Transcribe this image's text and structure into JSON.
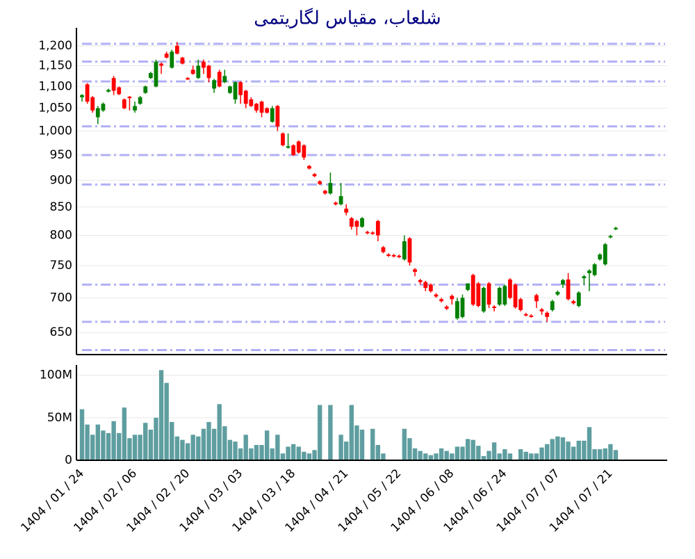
{
  "chart_data": [
    {
      "type": "candlestick",
      "title": "شلعاب، مقیاس لگاریتمی",
      "log_scale": true,
      "grid": true,
      "up_color": "#008000",
      "down_color": "#ff0000",
      "level_color": "#b0b0f5",
      "ylim": [
        620,
        1247
      ],
      "yticks": [
        650,
        700,
        750,
        800,
        850,
        900,
        950,
        {
          "value": 1000,
          "label": "1,000"
        },
        {
          "value": 1050,
          "label": "1,050"
        },
        {
          "value": 1100,
          "label": "1,100"
        },
        {
          "value": 1150,
          "label": "1,150"
        },
        {
          "value": 1200,
          "label": "1,200"
        }
      ],
      "levels": [
        1205,
        1160,
        1112,
        1010,
        950,
        892,
        720,
        665,
        626
      ],
      "open": [
        1075,
        1105,
        1075,
        1030,
        1045,
        1088,
        1120,
        1098,
        1070,
        1076,
        1045,
        1060,
        1085,
        1120,
        1100,
        1155,
        1180,
        1145,
        1200,
        1170,
        1120,
        1140,
        1120,
        1160,
        1150,
        1095,
        1135,
        1110,
        1085,
        1070,
        1110,
        1090,
        1070,
        1060,
        1065,
        1050,
        1020,
        1055,
        995,
        965,
        970,
        978,
        970,
        928,
        912,
        898,
        880,
        875,
        858,
        855,
        847,
        830,
        825,
        815,
        806,
        805,
        825,
        780,
        768,
        767,
        766,
        760,
        795,
        744,
        727,
        724,
        720,
        705,
        698,
        687,
        703,
        670,
        672,
        712,
        735,
        722,
        680,
        722,
        687,
        690,
        690,
        728,
        720,
        698,
        676,
        674,
        704,
        683,
        678,
        682,
        705,
        720,
        728,
        695,
        688,
        730,
        738,
        735,
        760,
        752,
        797,
        811
      ],
      "high": [
        1082,
        1108,
        1078,
        1055,
        1063,
        1095,
        1125,
        1100,
        1072,
        1078,
        1065,
        1078,
        1102,
        1135,
        1165,
        1158,
        1185,
        1190,
        1210,
        1172,
        1122,
        1150,
        1165,
        1165,
        1152,
        1118,
        1140,
        1140,
        1102,
        1112,
        1112,
        1092,
        1075,
        1062,
        1067,
        1052,
        1055,
        1057,
        997,
        995,
        972,
        980,
        972,
        930,
        914,
        900,
        882,
        915,
        860,
        895,
        855,
        832,
        827,
        832,
        808,
        807,
        827,
        782,
        770,
        769,
        768,
        800,
        797,
        746,
        729,
        726,
        722,
        707,
        700,
        689,
        705,
        700,
        705,
        722,
        737,
        724,
        717,
        724,
        689,
        717,
        720,
        730,
        722,
        700,
        678,
        676,
        706,
        685,
        680,
        697,
        711,
        729,
        738,
        697,
        710,
        735,
        744,
        754,
        770,
        787,
        801,
        815
      ],
      "low": [
        1065,
        1060,
        1040,
        1015,
        1042,
        1086,
        1080,
        1080,
        1048,
        1045,
        1040,
        1058,
        1083,
        1118,
        1098,
        1130,
        1168,
        1143,
        1178,
        1153,
        1115,
        1128,
        1118,
        1130,
        1110,
        1085,
        1098,
        1108,
        1083,
        1060,
        1060,
        1050,
        1053,
        1040,
        1030,
        1038,
        1018,
        1000,
        968,
        963,
        948,
        953,
        940,
        921,
        906,
        891,
        873,
        873,
        853,
        853,
        835,
        810,
        800,
        813,
        802,
        801,
        790,
        770,
        764,
        763,
        762,
        758,
        750,
        733,
        720,
        710,
        708,
        700,
        693,
        682,
        690,
        668,
        670,
        710,
        688,
        686,
        678,
        685,
        680,
        688,
        688,
        698,
        684,
        680,
        673,
        671,
        685,
        675,
        665,
        680,
        703,
        715,
        696,
        690,
        686,
        720,
        710,
        733,
        758,
        750,
        795,
        809
      ],
      "close": [
        1080,
        1065,
        1045,
        1050,
        1060,
        1092,
        1090,
        1082,
        1050,
        1074,
        1055,
        1075,
        1100,
        1132,
        1160,
        1150,
        1170,
        1185,
        1180,
        1155,
        1117,
        1130,
        1150,
        1145,
        1120,
        1115,
        1100,
        1125,
        1100,
        1110,
        1080,
        1060,
        1055,
        1045,
        1040,
        1040,
        1050,
        1010,
        970,
        968,
        950,
        955,
        945,
        923,
        908,
        893,
        875,
        895,
        855,
        870,
        840,
        815,
        815,
        830,
        804,
        803,
        800,
        772,
        766,
        765,
        764,
        790,
        755,
        740,
        724,
        715,
        710,
        702,
        695,
        684,
        698,
        695,
        700,
        722,
        690,
        688,
        715,
        690,
        685,
        715,
        718,
        700,
        686,
        682,
        675,
        673,
        695,
        680,
        672,
        695,
        709,
        727,
        698,
        692,
        708,
        733,
        742,
        752,
        768,
        785,
        799,
        813
      ]
    },
    {
      "type": "bar",
      "color": "#5f9ea0",
      "grid": true,
      "ylim": [
        0,
        112000000
      ],
      "yticks": [
        0,
        {
          "value": 50000000,
          "label": "50M"
        },
        {
          "value": 100000000,
          "label": "100M"
        }
      ],
      "categories": [
        "1404 / 01 / 24",
        null,
        null,
        null,
        null,
        null,
        null,
        null,
        null,
        null,
        "1404 / 02 / 06",
        null,
        null,
        null,
        null,
        null,
        null,
        null,
        null,
        null,
        "1404 / 02 / 20",
        null,
        null,
        null,
        null,
        null,
        null,
        null,
        null,
        null,
        "1404 / 03 / 03",
        null,
        null,
        null,
        null,
        null,
        null,
        null,
        null,
        null,
        "1404 / 03 / 18",
        null,
        null,
        null,
        null,
        null,
        null,
        null,
        null,
        null,
        "1404 / 04 / 21",
        null,
        null,
        null,
        null,
        null,
        null,
        null,
        null,
        null,
        "1404 / 05 / 22",
        null,
        null,
        null,
        null,
        null,
        null,
        null,
        null,
        null,
        "1404 / 06 / 08",
        null,
        null,
        null,
        null,
        null,
        null,
        null,
        null,
        null,
        "1404 / 06 / 24",
        null,
        null,
        null,
        null,
        null,
        null,
        null,
        null,
        null,
        "1404 / 07 / 07",
        null,
        null,
        null,
        null,
        null,
        null,
        null,
        null,
        null,
        "1404 / 07 / 21",
        null
      ],
      "values": [
        60000000,
        42000000,
        30000000,
        42000000,
        35000000,
        32000000,
        46000000,
        32000000,
        62000000,
        26000000,
        30000000,
        30000000,
        44000000,
        36000000,
        50000000,
        106000000,
        91000000,
        45000000,
        28000000,
        24000000,
        20000000,
        30000000,
        28000000,
        37000000,
        45000000,
        37000000,
        66000000,
        40000000,
        24000000,
        22000000,
        14000000,
        30000000,
        14000000,
        18000000,
        18000000,
        35000000,
        14000000,
        30000000,
        8000000,
        16000000,
        19000000,
        16000000,
        10000000,
        8000000,
        12000000,
        65000000,
        500000,
        65000000,
        1000000,
        30000000,
        22000000,
        65000000,
        41000000,
        36000000,
        1000000,
        37000000,
        18000000,
        8000000,
        1000000,
        1000000,
        2000000,
        37000000,
        26000000,
        14000000,
        11000000,
        8000000,
        6000000,
        8000000,
        14000000,
        11000000,
        8000000,
        16000000,
        16000000,
        25000000,
        24000000,
        17000000,
        5000000,
        11000000,
        21000000,
        8000000,
        13000000,
        8000000,
        4000000,
        13000000,
        10000000,
        8000000,
        8000000,
        15000000,
        19000000,
        25000000,
        28000000,
        27000000,
        22000000,
        16000000,
        23000000,
        23000000,
        39000000,
        13000000,
        13000000,
        14000000,
        19000000,
        12000000
      ]
    }
  ]
}
